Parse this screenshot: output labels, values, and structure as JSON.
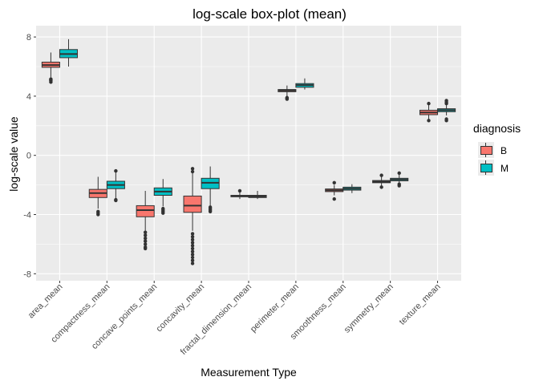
{
  "chart_data": {
    "type": "boxplot",
    "title": "log-scale box-plot (mean)",
    "xlabel": "Measurement Type",
    "ylabel": "log-scale value",
    "ylim": [
      -8,
      8.5
    ],
    "yticks": [
      -8,
      -4,
      0,
      4,
      8
    ],
    "categories": [
      "area_mean",
      "compactness_mean",
      "concave_points_mean",
      "concavity_mean",
      "fractal_dimension_mean",
      "perimeter_mean",
      "smoothness_mean",
      "symmetry_mean",
      "texture_mean"
    ],
    "legend": {
      "title": "diagnosis",
      "entries": [
        {
          "name": "B",
          "color": "#F8766D"
        },
        {
          "name": "M",
          "color": "#00BFC4"
        }
      ]
    },
    "series": [
      {
        "name": "B",
        "color": "#F8766D",
        "boxes": [
          {
            "low": 5.2,
            "q1": 5.95,
            "median": 6.1,
            "q3": 6.3,
            "high": 6.95,
            "outliers": [
              5.15,
              5.1,
              5.05,
              4.95
            ]
          },
          {
            "low": -3.6,
            "q1": -2.85,
            "median": -2.55,
            "q3": -2.3,
            "high": -1.45,
            "outliers": [
              -3.8,
              -3.9,
              -4.0
            ]
          },
          {
            "low": -5.1,
            "q1": -4.15,
            "median": -3.7,
            "q3": -3.4,
            "high": -2.4,
            "outliers": [
              -5.2,
              -5.4,
              -5.6,
              -5.8,
              -6.0,
              -6.2,
              -6.3
            ]
          },
          {
            "low": -5.1,
            "q1": -3.85,
            "median": -3.4,
            "q3": -2.75,
            "high": -0.85,
            "outliers": [
              -0.9,
              -1.1,
              -5.3,
              -5.5,
              -5.7,
              -5.9,
              -6.1,
              -6.3,
              -6.5,
              -6.7,
              -6.9,
              -7.1,
              -7.3
            ]
          },
          {
            "low": -2.95,
            "q1": -2.8,
            "median": -2.75,
            "q3": -2.7,
            "high": -2.45,
            "outliers": [
              -2.4
            ]
          },
          {
            "low": 3.95,
            "q1": 4.3,
            "median": 4.38,
            "q3": 4.45,
            "high": 4.72,
            "outliers": [
              3.9,
              3.85,
              3.8
            ]
          },
          {
            "low": -2.7,
            "q1": -2.45,
            "median": -2.36,
            "q3": -2.27,
            "high": -2.0,
            "outliers": [
              -2.95,
              -1.85
            ]
          },
          {
            "low": -2.1,
            "q1": -1.85,
            "median": -1.78,
            "q3": -1.7,
            "high": -1.45,
            "outliers": [
              -2.15,
              -1.35
            ]
          },
          {
            "low": 2.45,
            "q1": 2.75,
            "median": 2.9,
            "q3": 3.05,
            "high": 3.4,
            "outliers": [
              2.35,
              3.5
            ]
          }
        ]
      },
      {
        "name": "M",
        "color": "#00BFC4",
        "boxes": [
          {
            "low": 6.0,
            "q1": 6.6,
            "median": 6.85,
            "q3": 7.15,
            "high": 7.85,
            "outliers": []
          },
          {
            "low": -2.9,
            "q1": -2.25,
            "median": -2.0,
            "q3": -1.75,
            "high": -1.15,
            "outliers": [
              -3.0,
              -3.05,
              -1.05
            ]
          },
          {
            "low": -3.45,
            "q1": -2.7,
            "median": -2.45,
            "q3": -2.2,
            "high": -1.6,
            "outliers": [
              -3.6,
              -3.7,
              -3.8,
              -3.9
            ]
          },
          {
            "low": -3.4,
            "q1": -2.25,
            "median": -1.85,
            "q3": -1.55,
            "high": -0.75,
            "outliers": [
              -3.5,
              -3.6,
              -3.7,
              -3.8
            ]
          },
          {
            "low": -2.95,
            "q1": -2.85,
            "median": -2.78,
            "q3": -2.7,
            "high": -2.4,
            "outliers": []
          },
          {
            "low": 4.45,
            "q1": 4.6,
            "median": 4.75,
            "q3": 4.85,
            "high": 5.2,
            "outliers": []
          },
          {
            "low": -2.55,
            "q1": -2.35,
            "median": -2.25,
            "q3": -2.15,
            "high": -1.95,
            "outliers": []
          },
          {
            "low": -1.9,
            "q1": -1.72,
            "median": -1.63,
            "q3": -1.55,
            "high": -1.3,
            "outliers": [
              -1.95,
              -2.05,
              -1.2
            ]
          },
          {
            "low": 2.7,
            "q1": 2.95,
            "median": 3.05,
            "q3": 3.15,
            "high": 3.4,
            "outliers": [
              2.35,
              2.45,
              3.5,
              3.6,
              3.7
            ]
          }
        ]
      }
    ]
  }
}
